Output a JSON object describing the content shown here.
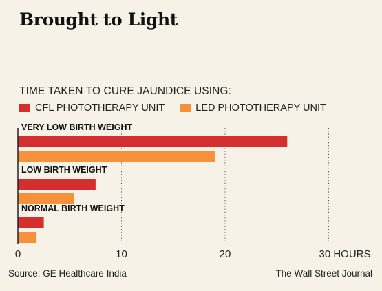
{
  "header": {
    "title": "Brought to Light"
  },
  "footer": {
    "source": "Source: GE Healthcare India",
    "publisher": "The Wall Street Journal"
  },
  "colors": {
    "cfl": "#d32f2f",
    "led": "#f7903a",
    "background": "#f6f2e8",
    "axis": "#222222",
    "grid": "#555555"
  },
  "chart_data": {
    "type": "bar",
    "orientation": "horizontal",
    "title": "TIME TAKEN TO CURE JAUNDICE USING:",
    "categories": [
      "VERY LOW BIRTH WEIGHT",
      "LOW BIRTH WEIGHT",
      "NORMAL BIRTH WEIGHT"
    ],
    "series": [
      {
        "name": "CFL PHOTOTHERAPY UNIT",
        "color": "#d32f2f",
        "values": [
          26,
          7.5,
          2.5
        ]
      },
      {
        "name": "LED PHOTOTHERAPY UNIT",
        "color": "#f7903a",
        "values": [
          19,
          5.4,
          1.8
        ]
      }
    ],
    "xlim": [
      0,
      30
    ],
    "ticks": [
      0,
      10,
      20,
      30
    ],
    "tick_labels": [
      "0",
      "10",
      "20",
      "30 HOURS"
    ],
    "grid": "vertical dotted",
    "legend": "top-left"
  }
}
